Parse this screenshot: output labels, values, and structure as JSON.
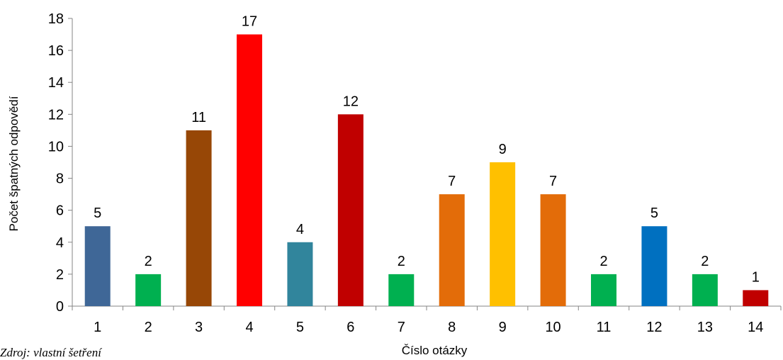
{
  "chart_data": {
    "type": "bar",
    "categories": [
      "1",
      "2",
      "3",
      "4",
      "5",
      "6",
      "7",
      "8",
      "9",
      "10",
      "11",
      "12",
      "13",
      "14"
    ],
    "values": [
      5,
      2,
      11,
      17,
      4,
      12,
      2,
      7,
      9,
      7,
      2,
      5,
      2,
      1
    ],
    "colors": [
      "#3F6797",
      "#00B050",
      "#974706",
      "#FF0000",
      "#31859C",
      "#C00000",
      "#00B050",
      "#E36C09",
      "#FFC000",
      "#E36C09",
      "#00B050",
      "#0070C0",
      "#00B050",
      "#C00000"
    ],
    "xlabel": "Číslo otázky",
    "ylabel": "Počet špatných odpovědí",
    "ylim": [
      0,
      18
    ],
    "yticks": [
      0,
      2,
      4,
      6,
      8,
      10,
      12,
      14,
      16,
      18
    ],
    "grid": false,
    "legend": "none",
    "data_labels": true
  },
  "source_note": "Zdroj: vlastní šetření"
}
